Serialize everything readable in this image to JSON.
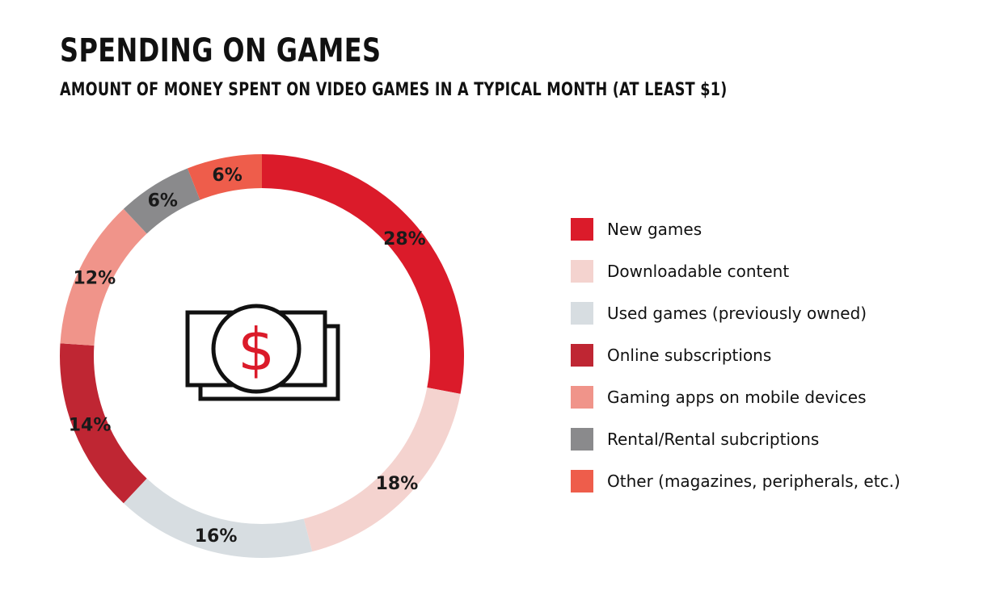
{
  "chart_data": {
    "type": "pie",
    "title": "SPENDING ON GAMES",
    "subtitle": "AMOUNT OF MONEY SPENT ON VIDEO GAMES IN A TYPICAL MONTH (AT LEAST $1)",
    "categories": [
      "New games",
      "Downloadable content",
      "Used games (previously owned)",
      "Online subscriptions",
      "Gaming apps on mobile devices",
      "Rental/Rental subcriptions",
      "Other (magazines, peripherals, etc.)"
    ],
    "values": [
      28,
      18,
      16,
      14,
      12,
      6,
      6
    ],
    "data_labels": [
      "28%",
      "18%",
      "16%",
      "14%",
      "12%",
      "6%",
      "6%"
    ],
    "colors": [
      "#db1b2a",
      "#f4d3cf",
      "#d7dde1",
      "#bf2633",
      "#f0948a",
      "#8a8a8c",
      "#ee5d4b"
    ],
    "donut": true,
    "center_icon": "dollar-bill-icon",
    "legend_position": "right"
  }
}
